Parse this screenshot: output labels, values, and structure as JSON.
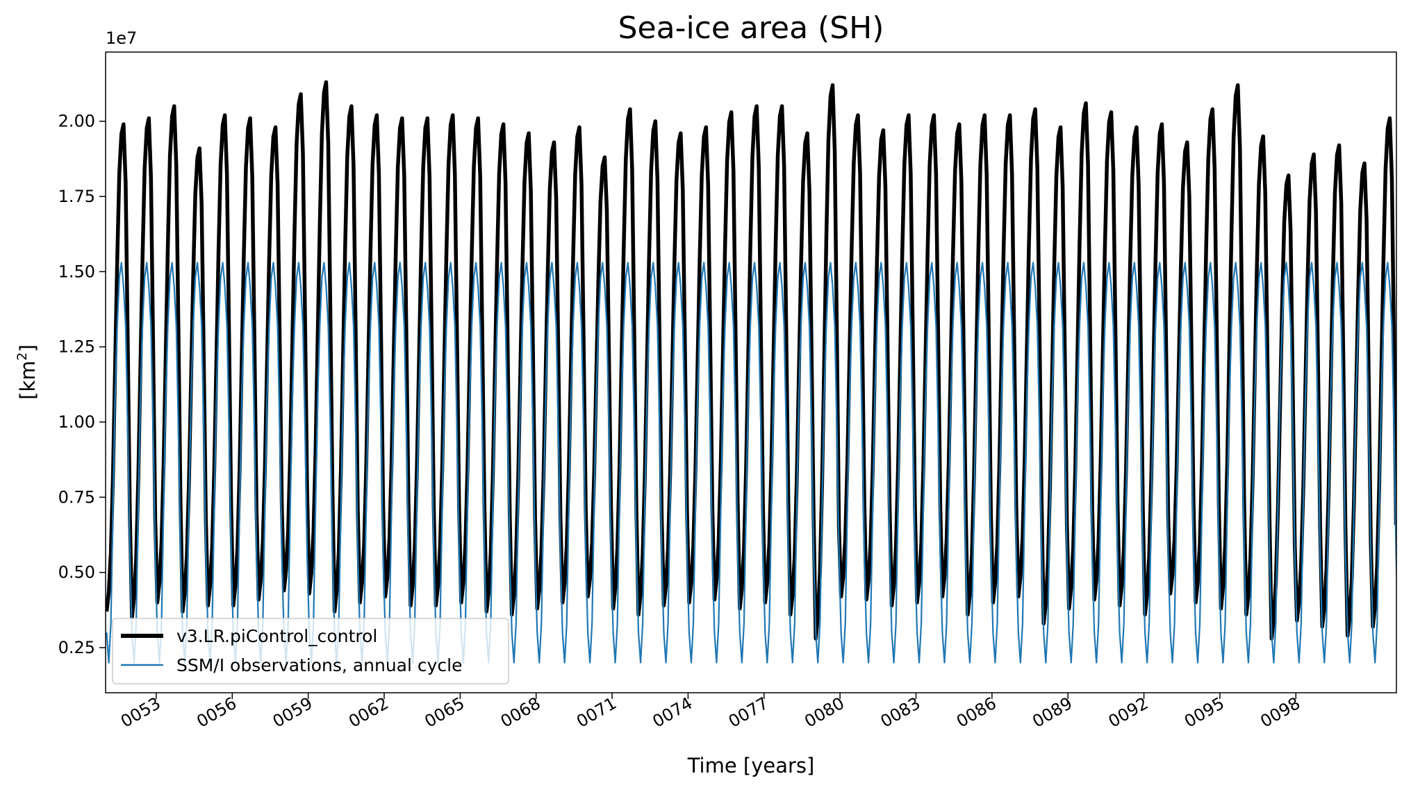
{
  "chart_data": {
    "type": "line",
    "title": "Sea-ice area (SH)",
    "xlabel": "Time [years]",
    "ylabel_base": "[km",
    "ylabel_sup": "2",
    "ylabel_close": "]",
    "y_offset_label": "1e7",
    "y_scale": 10000000,
    "xlim": [
      51.0,
      101.97
    ],
    "ylim": [
      0.1,
      2.23
    ],
    "x_ticks": [
      53,
      56,
      59,
      62,
      65,
      68,
      71,
      74,
      77,
      80,
      83,
      86,
      89,
      92,
      95,
      98
    ],
    "x_tick_labels": [
      "0053",
      "0056",
      "0059",
      "0062",
      "0065",
      "0068",
      "0071",
      "0074",
      "0077",
      "0080",
      "0083",
      "0086",
      "0089",
      "0092",
      "0095",
      "0098"
    ],
    "y_ticks": [
      0.25,
      0.5,
      0.75,
      1.0,
      1.25,
      1.5,
      1.75,
      2.0
    ],
    "y_tick_labels": [
      "0.25",
      "0.50",
      "0.75",
      "1.00",
      "1.25",
      "1.50",
      "1.75",
      "2.00"
    ],
    "legend_position": "lower-left",
    "series": [
      {
        "name": "v3.LR.piControl_control",
        "color": "#000000",
        "kind": "monthly_model",
        "years": [
          51,
          52,
          53,
          54,
          55,
          56,
          57,
          58,
          59,
          60,
          61,
          62,
          63,
          64,
          65,
          66,
          67,
          68,
          69,
          70,
          71,
          72,
          73,
          74,
          75,
          76,
          77,
          78,
          79,
          80,
          81,
          82,
          83,
          84,
          85,
          86,
          87,
          88,
          89,
          90,
          91,
          92,
          93,
          94,
          95,
          96,
          97,
          98,
          99,
          100,
          101
        ],
        "annual_max": [
          1.99,
          2.01,
          2.05,
          1.91,
          2.02,
          2.01,
          1.98,
          2.09,
          2.13,
          2.05,
          2.02,
          2.01,
          2.01,
          2.02,
          2.01,
          1.99,
          1.96,
          1.93,
          1.98,
          1.88,
          2.04,
          2.0,
          1.96,
          1.98,
          2.03,
          2.05,
          2.05,
          1.96,
          2.12,
          2.02,
          1.97,
          2.02,
          2.02,
          1.99,
          2.02,
          2.02,
          2.04,
          1.98,
          2.06,
          2.03,
          1.98,
          1.99,
          1.93,
          2.04,
          2.12,
          1.95,
          1.82,
          1.89,
          1.92,
          1.86,
          2.01
        ],
        "annual_min": [
          0.37,
          0.35,
          0.4,
          0.37,
          0.39,
          0.39,
          0.41,
          0.44,
          0.43,
          0.37,
          0.4,
          0.42,
          0.39,
          0.39,
          0.4,
          0.37,
          0.36,
          0.38,
          0.4,
          0.42,
          0.38,
          0.36,
          0.39,
          0.4,
          0.41,
          0.38,
          0.4,
          0.36,
          0.28,
          0.42,
          0.41,
          0.39,
          0.4,
          0.42,
          0.36,
          0.4,
          0.42,
          0.33,
          0.38,
          0.41,
          0.39,
          0.36,
          0.43,
          0.4,
          0.38,
          0.36,
          0.28,
          0.34,
          0.32,
          0.29,
          0.32
        ]
      },
      {
        "name": "SSM/I observations, annual cycle",
        "color": "#1f77b4",
        "kind": "climatology",
        "monthly_values": [
          0.3,
          0.2,
          0.33,
          0.72,
          1.08,
          1.32,
          1.48,
          1.53,
          1.45,
          1.32,
          0.98,
          0.56
        ]
      }
    ]
  }
}
